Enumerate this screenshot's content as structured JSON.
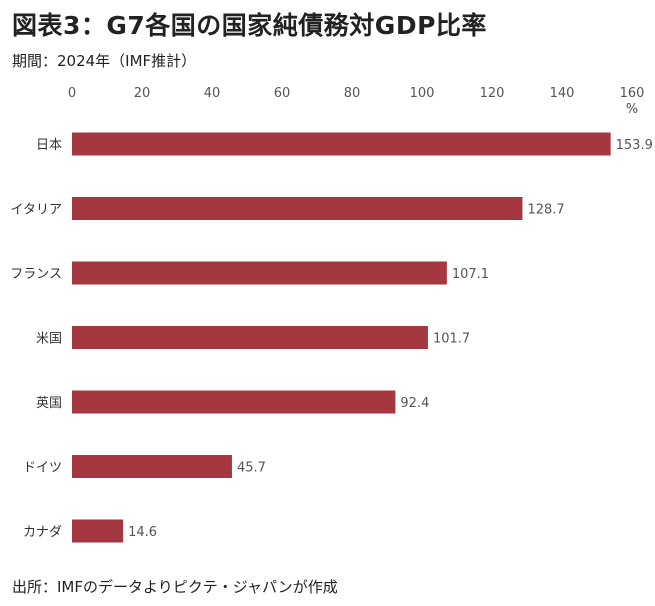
{
  "title": "図表3：G7各国の国家純債務対GDP比率",
  "subtitle": "期間：2024年（IMF推計）",
  "source": "出所：IMFのデータよりピクテ・ジャパンが作成",
  "colors": {
    "bar": "#a4373f"
  },
  "chart_data": {
    "type": "bar",
    "orientation": "horizontal",
    "categories": [
      "日本",
      "イタリア",
      "フランス",
      "米国",
      "英国",
      "ドイツ",
      "カナダ"
    ],
    "values": [
      153.9,
      128.7,
      107.1,
      101.7,
      92.4,
      45.7,
      14.6
    ],
    "value_labels": [
      "153.9",
      "128.7",
      "107.1",
      "101.7",
      "92.4",
      "45.7",
      "14.6"
    ],
    "xlim": [
      0,
      160
    ],
    "xticks": [
      "0",
      "20",
      "40",
      "60",
      "80",
      "100",
      "120",
      "140",
      "160"
    ],
    "unit": "%",
    "axis_position": "top",
    "grid": false
  }
}
